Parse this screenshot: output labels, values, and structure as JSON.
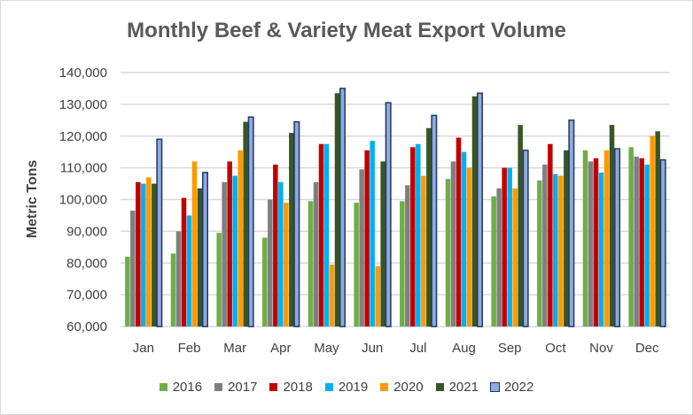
{
  "chart_data": {
    "type": "bar",
    "title": "Monthly Beef & Variety Meat Export Volume",
    "xlabel": "",
    "ylabel": "Metric Tons",
    "ylim": [
      60000,
      140000
    ],
    "yticks": [
      "60,000",
      "70,000",
      "80,000",
      "90,000",
      "100,000",
      "110,000",
      "120,000",
      "130,000",
      "140,000"
    ],
    "grid": true,
    "legend": "bottom",
    "categories": [
      "Jan",
      "Feb",
      "Mar",
      "Apr",
      "May",
      "Jun",
      "Jul",
      "Aug",
      "Sep",
      "Oct",
      "Nov",
      "Dec"
    ],
    "series": [
      {
        "name": "2016",
        "color": "#70ad47",
        "values": [
          82000,
          83000,
          89500,
          88000,
          99500,
          99000,
          99500,
          106500,
          101000,
          106000,
          115500,
          116500
        ]
      },
      {
        "name": "2017",
        "color": "#7f7f7f",
        "values": [
          96500,
          90000,
          105500,
          100000,
          105500,
          109500,
          104500,
          112000,
          103500,
          111000,
          112000,
          113500
        ]
      },
      {
        "name": "2018",
        "color": "#c00000",
        "values": [
          105500,
          100500,
          112000,
          111000,
          117500,
          115500,
          116500,
          119500,
          110000,
          117500,
          113000,
          113000
        ]
      },
      {
        "name": "2019",
        "color": "#00b0f0",
        "values": [
          105000,
          95000,
          107500,
          105500,
          117500,
          118500,
          117500,
          115000,
          110000,
          108000,
          108500,
          111000
        ]
      },
      {
        "name": "2020",
        "color": "#ff9900",
        "values": [
          107000,
          112000,
          115500,
          99000,
          79500,
          79000,
          107500,
          110000,
          103500,
          107500,
          115500,
          120000
        ]
      },
      {
        "name": "2021",
        "color": "#375623",
        "values": [
          105000,
          103500,
          124500,
          121000,
          133500,
          112000,
          122500,
          132500,
          123500,
          115500,
          123500,
          121500
        ]
      },
      {
        "name": "2022",
        "color": "#8faadc",
        "edge": "#203864",
        "values": [
          119000,
          108500,
          126000,
          124500,
          135000,
          130500,
          126500,
          133500,
          115500,
          125000,
          116000,
          112500
        ]
      }
    ]
  }
}
